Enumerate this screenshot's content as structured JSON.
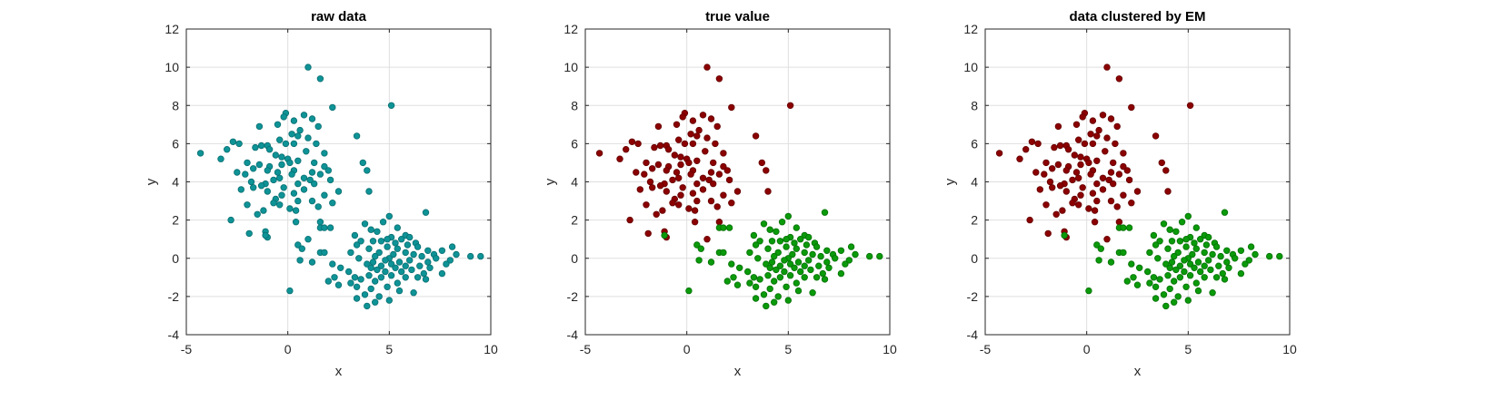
{
  "colors": {
    "raw": "#0e9396",
    "raw_edge": "#0a6f72",
    "cluster_a": "#8b0000",
    "cluster_a_edge": "#650000",
    "cluster_b": "#0a9a0a",
    "cluster_b_edge": "#067006"
  },
  "chart_data": [
    {
      "type": "scatter",
      "title": "raw data",
      "xlabel": "x",
      "ylabel": "y",
      "xlim": [
        -5,
        10
      ],
      "ylim": [
        -4,
        12
      ],
      "xticks": [
        -5,
        0,
        5,
        10
      ],
      "yticks": [
        -4,
        -2,
        0,
        2,
        4,
        6,
        8,
        10,
        12
      ],
      "grid": true,
      "series": [
        {
          "color_key": "raw",
          "group": "all"
        }
      ]
    },
    {
      "type": "scatter",
      "title": "true value",
      "xlabel": "x",
      "ylabel": "y",
      "xlim": [
        -5,
        10
      ],
      "ylim": [
        -4,
        12
      ],
      "xticks": [
        -5,
        0,
        5,
        10
      ],
      "yticks": [
        -4,
        -2,
        0,
        2,
        4,
        6,
        8,
        10,
        12
      ],
      "grid": true,
      "series": [
        {
          "color_key": "cluster_a",
          "group": "a"
        },
        {
          "color_key": "cluster_b",
          "group": "b"
        }
      ]
    },
    {
      "type": "scatter",
      "title": "data clustered by EM",
      "xlabel": "x",
      "ylabel": "y",
      "xlim": [
        -5,
        10
      ],
      "ylim": [
        -4,
        12
      ],
      "xticks": [
        -5,
        0,
        5,
        10
      ],
      "yticks": [
        -4,
        -2,
        0,
        2,
        4,
        6,
        8,
        10,
        12
      ],
      "grid": true,
      "series": [
        {
          "color_key": "cluster_a",
          "group": "a"
        },
        {
          "color_key": "cluster_b",
          "group": "b"
        }
      ]
    }
  ],
  "points": {
    "a": [
      [
        1.0,
        10.0
      ],
      [
        1.6,
        9.4
      ],
      [
        5.1,
        8.0
      ],
      [
        2.2,
        7.9
      ],
      [
        -0.1,
        7.6
      ],
      [
        -0.2,
        7.4
      ],
      [
        0.8,
        7.5
      ],
      [
        1.2,
        7.3
      ],
      [
        0.3,
        7.2
      ],
      [
        -0.5,
        7.0
      ],
      [
        -1.4,
        6.9
      ],
      [
        0.6,
        6.7
      ],
      [
        1.5,
        6.9
      ],
      [
        0.2,
        6.5
      ],
      [
        0.5,
        6.4
      ],
      [
        3.4,
        6.4
      ],
      [
        -0.4,
        6.2
      ],
      [
        1.0,
        6.3
      ],
      [
        -2.7,
        6.1
      ],
      [
        -2.4,
        6.0
      ],
      [
        -1.3,
        5.9
      ],
      [
        -1.0,
        5.9
      ],
      [
        -0.1,
        6.0
      ],
      [
        0.3,
        6.0
      ],
      [
        1.4,
        6.0
      ],
      [
        -1.6,
        5.8
      ],
      [
        -0.9,
        5.7
      ],
      [
        -3.0,
        5.7
      ],
      [
        0.9,
        5.6
      ],
      [
        1.8,
        5.5
      ],
      [
        -4.3,
        5.5
      ],
      [
        -0.3,
        5.3
      ],
      [
        -0.6,
        5.4
      ],
      [
        0.0,
        5.2
      ],
      [
        0.5,
        5.1
      ],
      [
        1.3,
        5.0
      ],
      [
        -3.3,
        5.2
      ],
      [
        -2.0,
        5.0
      ],
      [
        3.7,
        5.0
      ],
      [
        0.1,
        5.0
      ],
      [
        -1.4,
        4.9
      ],
      [
        -0.9,
        4.8
      ],
      [
        -0.3,
        4.9
      ],
      [
        1.8,
        4.8
      ],
      [
        2.0,
        4.6
      ],
      [
        -1.7,
        4.7
      ],
      [
        -1.0,
        4.6
      ],
      [
        -0.5,
        4.5
      ],
      [
        0.3,
        4.6
      ],
      [
        -2.5,
        4.5
      ],
      [
        -2.1,
        4.4
      ],
      [
        0.2,
        4.4
      ],
      [
        1.2,
        4.5
      ],
      [
        1.6,
        4.4
      ],
      [
        3.9,
        4.6
      ],
      [
        -0.4,
        4.2
      ],
      [
        0.8,
        4.2
      ],
      [
        1.1,
        4.1
      ],
      [
        -0.7,
        4.1
      ],
      [
        1.3,
        3.9
      ],
      [
        -1.8,
        4.0
      ],
      [
        2.1,
        4.1
      ],
      [
        0.5,
        3.9
      ],
      [
        -1.1,
        3.9
      ],
      [
        -0.2,
        3.7
      ],
      [
        0.8,
        3.6
      ],
      [
        -1.7,
        3.7
      ],
      [
        -2.3,
        3.6
      ],
      [
        -1.0,
        3.5
      ],
      [
        -1.3,
        3.8
      ],
      [
        2.5,
        3.5
      ],
      [
        4.0,
        3.5
      ],
      [
        0.3,
        3.4
      ],
      [
        1.8,
        3.3
      ],
      [
        -0.3,
        3.3
      ],
      [
        -0.6,
        3.1
      ],
      [
        0.5,
        3.0
      ],
      [
        1.2,
        3.0
      ],
      [
        -0.7,
        2.9
      ],
      [
        2.2,
        2.9
      ],
      [
        -2.0,
        2.8
      ],
      [
        -0.4,
        2.8
      ],
      [
        0.1,
        2.6
      ],
      [
        1.5,
        2.7
      ],
      [
        -1.2,
        2.5
      ],
      [
        0.4,
        2.5
      ],
      [
        -1.5,
        2.3
      ],
      [
        -2.8,
        2.0
      ],
      [
        0.4,
        1.9
      ],
      [
        1.6,
        1.9
      ],
      [
        -1.1,
        1.4
      ],
      [
        -1.9,
        1.3
      ],
      [
        -1.0,
        1.1
      ],
      [
        1.0,
        1.0
      ]
    ],
    "b": [
      [
        6.8,
        2.4
      ],
      [
        5.0,
        2.2
      ],
      [
        4.7,
        1.9
      ],
      [
        3.8,
        1.8
      ],
      [
        5.4,
        1.6
      ],
      [
        1.6,
        1.6
      ],
      [
        1.8,
        1.6
      ],
      [
        2.1,
        1.6
      ],
      [
        4.1,
        1.5
      ],
      [
        4.4,
        1.4
      ],
      [
        5.8,
        1.2
      ],
      [
        3.3,
        1.2
      ],
      [
        5.1,
        1.1
      ],
      [
        4.9,
        1.0
      ],
      [
        5.6,
        1.0
      ],
      [
        6.0,
        1.1
      ],
      [
        3.6,
        0.9
      ],
      [
        4.2,
        0.9
      ],
      [
        4.6,
        0.9
      ],
      [
        5.3,
        0.8
      ],
      [
        6.3,
        0.8
      ],
      [
        3.4,
        0.7
      ],
      [
        0.5,
        0.7
      ],
      [
        5.9,
        0.7
      ],
      [
        6.4,
        0.6
      ],
      [
        8.1,
        0.6
      ],
      [
        4.9,
        0.6
      ],
      [
        0.7,
        0.5
      ],
      [
        4.0,
        0.5
      ],
      [
        5.4,
        0.5
      ],
      [
        6.9,
        0.4
      ],
      [
        7.6,
        0.4
      ],
      [
        3.1,
        0.3
      ],
      [
        4.5,
        0.3
      ],
      [
        5.8,
        0.3
      ],
      [
        1.6,
        0.3
      ],
      [
        1.8,
        0.3
      ],
      [
        7.2,
        0.2
      ],
      [
        8.3,
        0.2
      ],
      [
        5.2,
        0.2
      ],
      [
        6.2,
        0.2
      ],
      [
        6.6,
        0.1
      ],
      [
        9.0,
        0.1
      ],
      [
        9.5,
        0.1
      ],
      [
        4.3,
        0.1
      ],
      [
        5.0,
        0.0
      ],
      [
        3.5,
        0.0
      ],
      [
        7.3,
        0.0
      ],
      [
        6.0,
        -0.1
      ],
      [
        4.8,
        -0.1
      ],
      [
        0.6,
        -0.1
      ],
      [
        8.0,
        -0.1
      ],
      [
        5.5,
        -0.2
      ],
      [
        1.2,
        -0.2
      ],
      [
        4.2,
        -0.2
      ],
      [
        6.9,
        -0.2
      ],
      [
        2.2,
        -0.3
      ],
      [
        5.1,
        -0.3
      ],
      [
        7.8,
        -0.3
      ],
      [
        3.9,
        -0.3
      ],
      [
        4.6,
        -0.4
      ],
      [
        6.5,
        -0.4
      ],
      [
        5.8,
        -0.4
      ],
      [
        2.6,
        -0.5
      ],
      [
        4.1,
        -0.5
      ],
      [
        5.3,
        -0.5
      ],
      [
        7.0,
        -0.5
      ],
      [
        4.4,
        -0.6
      ],
      [
        6.1,
        -0.6
      ],
      [
        4.8,
        -0.7
      ],
      [
        5.6,
        -0.7
      ],
      [
        3.0,
        -0.7
      ],
      [
        6.7,
        -0.8
      ],
      [
        7.6,
        -0.8
      ],
      [
        4.0,
        -0.9
      ],
      [
        5.1,
        -0.9
      ],
      [
        2.3,
        -1.0
      ],
      [
        4.6,
        -1.0
      ],
      [
        6.4,
        -1.0
      ],
      [
        5.8,
        -1.0
      ],
      [
        3.3,
        -1.0
      ],
      [
        3.6,
        -1.1
      ],
      [
        6.8,
        -1.1
      ],
      [
        2.0,
        -1.2
      ],
      [
        4.3,
        -1.2
      ],
      [
        5.4,
        -1.3
      ],
      [
        3.1,
        -1.3
      ],
      [
        2.5,
        -1.4
      ],
      [
        4.9,
        -1.5
      ],
      [
        3.4,
        -1.5
      ],
      [
        4.1,
        -1.6
      ],
      [
        5.5,
        -1.7
      ],
      [
        0.1,
        -1.7
      ],
      [
        6.2,
        -1.8
      ],
      [
        3.8,
        -1.9
      ],
      [
        4.5,
        -2.0
      ],
      [
        3.4,
        -2.1
      ],
      [
        5.0,
        -2.2
      ],
      [
        4.3,
        -2.3
      ],
      [
        3.9,
        -2.5
      ],
      [
        -1.1,
        1.2
      ]
    ]
  }
}
